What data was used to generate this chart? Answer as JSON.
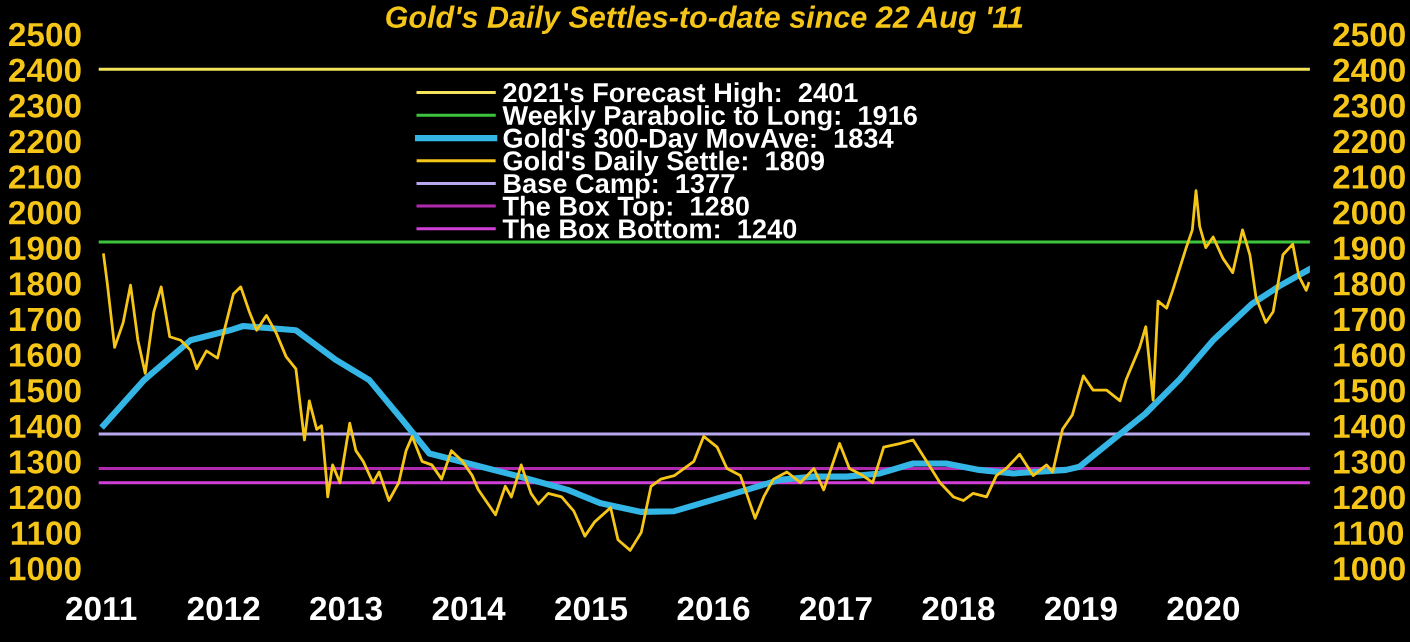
{
  "chart_data": {
    "type": "line",
    "title": "Gold's Daily Settles-to-date since 22 Aug '11",
    "xlim": [
      2010.98,
      2020.87
    ],
    "xticks": [
      2011,
      2012,
      2013,
      2014,
      2015,
      2016,
      2017,
      2018,
      2019,
      2020
    ],
    "ylim": [
      1000,
      2500
    ],
    "yticks": [
      1000,
      1100,
      1200,
      1300,
      1400,
      1500,
      1600,
      1700,
      1800,
      1900,
      2000,
      2100,
      2200,
      2300,
      2400,
      2500
    ],
    "y2lim": [
      1000,
      2500
    ],
    "y2ticks": [
      1000,
      1100,
      1200,
      1300,
      1400,
      1500,
      1600,
      1700,
      1800,
      1900,
      2000,
      2100,
      2200,
      2300,
      2400,
      2500
    ],
    "grid": false,
    "legend": "top",
    "marker": "none",
    "line_style": "solid",
    "series": [
      {
        "name": "Gold's 300-Day MovAve:  1834",
        "color": "#33b5e5",
        "x": [
          2011.02,
          2011.35,
          2011.73,
          2012.05,
          2012.16,
          2012.59,
          2012.92,
          2013.19,
          2013.46,
          2013.68,
          2014.0,
          2014.43,
          2014.81,
          2015.08,
          2015.41,
          2015.68,
          2016.27,
          2016.54,
          2016.82,
          2017.09,
          2017.36,
          2017.63,
          2017.9,
          2018.17,
          2018.45,
          2018.88,
          2018.99,
          2019.26,
          2019.53,
          2019.8,
          2020.08,
          2020.4,
          2020.62,
          2020.86
        ],
        "values": [
          1401,
          1528,
          1640,
          1668,
          1680,
          1668,
          1584,
          1528,
          1416,
          1322,
          1294,
          1256,
          1220,
          1182,
          1158,
          1160,
          1220,
          1248,
          1257,
          1257,
          1266,
          1294,
          1294,
          1276,
          1266,
          1276,
          1285,
          1360,
          1435,
          1528,
          1640,
          1743,
          1792,
          1838
        ]
      },
      {
        "name": "Gold's Daily Settle:  1809",
        "color": "#f5c518",
        "x": [
          2011.02,
          2011.05,
          2011.11,
          2011.18,
          2011.24,
          2011.3,
          2011.36,
          2011.43,
          2011.49,
          2011.56,
          2011.65,
          2011.73,
          2011.78,
          2011.86,
          2011.95,
          2012.0,
          2012.08,
          2012.14,
          2012.21,
          2012.27,
          2012.35,
          2012.43,
          2012.51,
          2012.59,
          2012.66,
          2012.7,
          2012.76,
          2012.8,
          2012.84,
          2012.85,
          2012.89,
          2012.95,
          2013.03,
          2013.08,
          2013.14,
          2013.22,
          2013.27,
          2013.35,
          2013.43,
          2013.49,
          2013.54,
          2013.62,
          2013.7,
          2013.78,
          2013.86,
          2013.95,
          2014.03,
          2014.08,
          2014.22,
          2014.3,
          2014.35,
          2014.43,
          2014.51,
          2014.57,
          2014.65,
          2014.76,
          2014.86,
          2014.95,
          2015.03,
          2015.16,
          2015.22,
          2015.32,
          2015.41,
          2015.49,
          2015.57,
          2015.68,
          2015.84,
          2015.92,
          2016.03,
          2016.11,
          2016.22,
          2016.27,
          2016.34,
          2016.41,
          2016.49,
          2016.6,
          2016.71,
          2016.82,
          2016.9,
          2017.03,
          2017.11,
          2017.22,
          2017.3,
          2017.39,
          2017.52,
          2017.63,
          2017.74,
          2017.85,
          2017.96,
          2018.04,
          2018.12,
          2018.23,
          2018.31,
          2018.39,
          2018.5,
          2018.61,
          2018.72,
          2018.77,
          2018.85,
          2018.93,
          2019.02,
          2019.1,
          2019.21,
          2019.32,
          2019.37,
          2019.48,
          2019.53,
          2019.59,
          2019.63,
          2019.7,
          2019.75,
          2019.86,
          2019.91,
          2019.94,
          2019.97,
          2020.02,
          2020.08,
          2020.16,
          2020.24,
          2020.32,
          2020.38,
          2020.43,
          2020.51,
          2020.57,
          2020.65,
          2020.73,
          2020.78,
          2020.84,
          2020.86
        ],
        "values": [
          1880,
          1800,
          1620,
          1690,
          1795,
          1640,
          1547,
          1720,
          1790,
          1650,
          1640,
          1612,
          1560,
          1610,
          1590,
          1660,
          1770,
          1790,
          1720,
          1668,
          1710,
          1660,
          1594,
          1560,
          1360,
          1470,
          1390,
          1400,
          1248,
          1200,
          1290,
          1240,
          1407,
          1330,
          1300,
          1240,
          1270,
          1190,
          1240,
          1330,
          1370,
          1300,
          1290,
          1250,
          1330,
          1300,
          1260,
          1220,
          1150,
          1230,
          1200,
          1290,
          1210,
          1180,
          1210,
          1200,
          1160,
          1090,
          1130,
          1170,
          1080,
          1050,
          1100,
          1230,
          1250,
          1260,
          1300,
          1370,
          1340,
          1280,
          1260,
          1210,
          1140,
          1200,
          1250,
          1270,
          1240,
          1280,
          1220,
          1350,
          1280,
          1260,
          1240,
          1340,
          1350,
          1360,
          1300,
          1240,
          1200,
          1190,
          1210,
          1200,
          1260,
          1280,
          1320,
          1260,
          1290,
          1270,
          1390,
          1430,
          1540,
          1500,
          1500,
          1470,
          1530,
          1620,
          1678,
          1472,
          1750,
          1730,
          1780,
          1900,
          1950,
          2060,
          1960,
          1900,
          1930,
          1870,
          1830,
          1950,
          1880,
          1760,
          1690,
          1720,
          1880,
          1910,
          1820,
          1780,
          1800
        ]
      }
    ],
    "ref_lines": [
      {
        "axis": "y",
        "value": 2401,
        "label": "2021's Forecast High:  2401",
        "color": "#f2e35a"
      },
      {
        "axis": "y",
        "value": 1916,
        "label": "Weekly Parabolic to Long:  1916",
        "color": "#3cc43c"
      },
      {
        "axis": "y",
        "value": 1377,
        "label": "Base Camp:  1377",
        "color": "#b8a8f0"
      },
      {
        "axis": "y",
        "value": 1280,
        "label": "The Box Top:  1280",
        "color": "#b02ab0"
      },
      {
        "axis": "y",
        "value": 1240,
        "label": "The Box Bottom:  1240",
        "color": "#d040d8"
      }
    ]
  }
}
